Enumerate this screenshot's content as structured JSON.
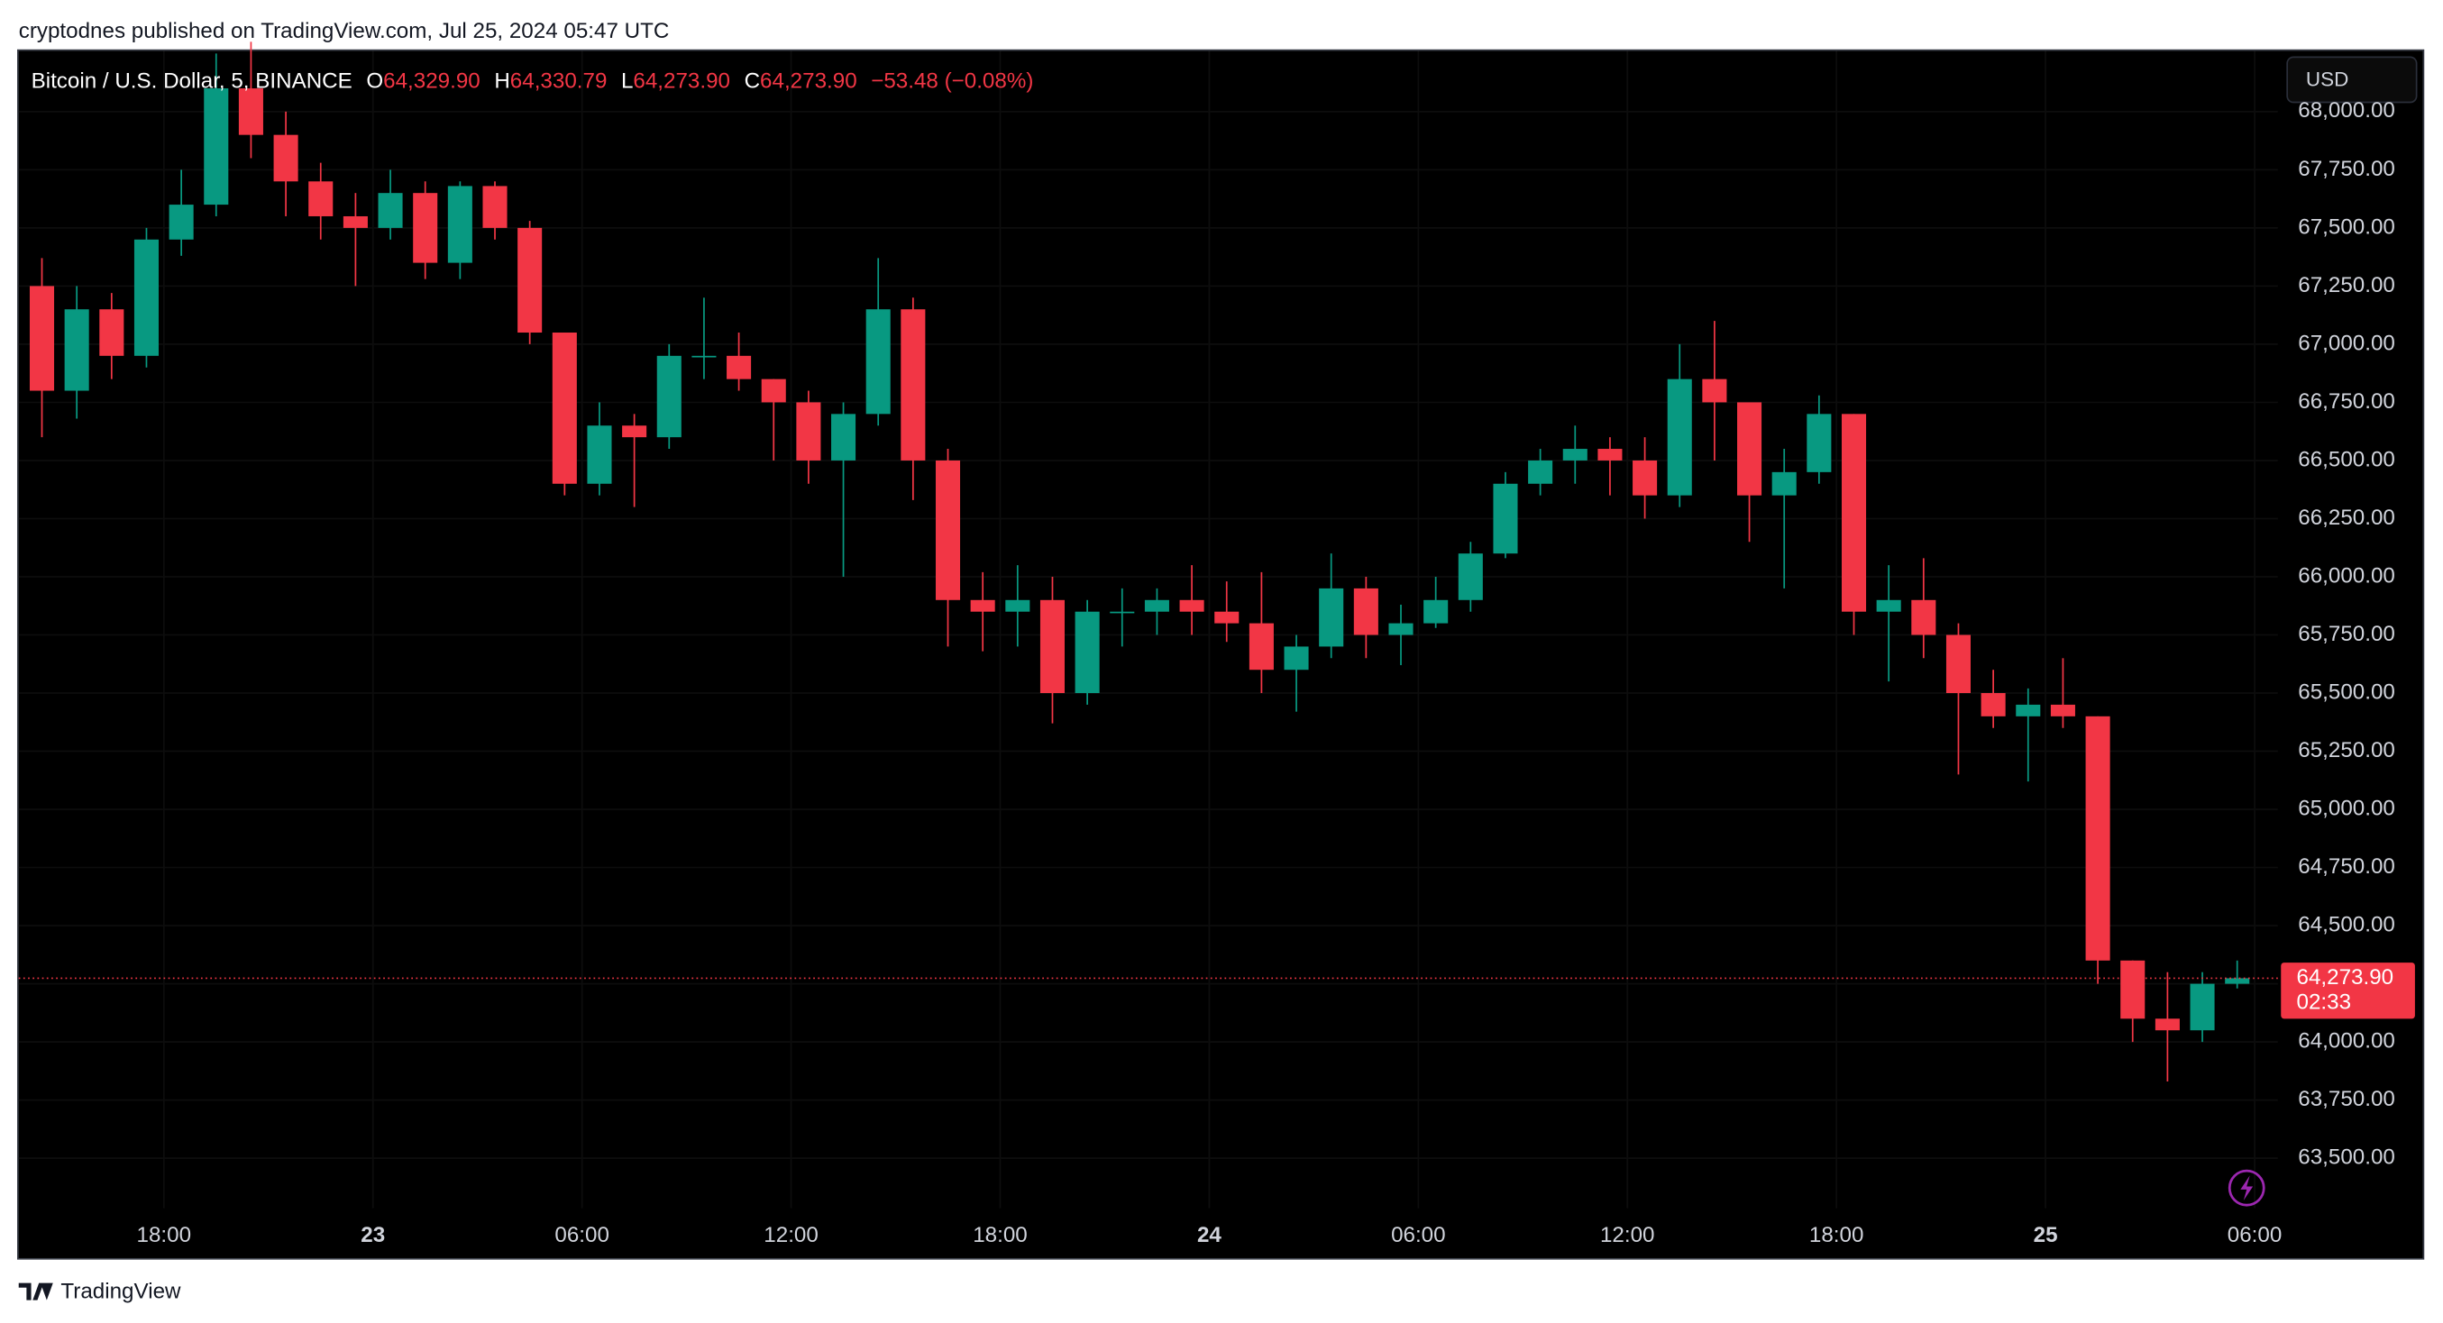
{
  "publish_note": "cryptodnes published on TradingView.com, Jul 25, 2024 05:47 UTC",
  "brand": "TradingView",
  "currency_button": "USD",
  "chart_data": {
    "type": "candlestick",
    "title": "Bitcoin / U.S. Dollar, 5, BINANCE",
    "header_stats": [
      {
        "label": "O",
        "value": "64,329.90"
      },
      {
        "label": "H",
        "value": "64,330.79"
      },
      {
        "label": "L",
        "value": "64,273.90"
      },
      {
        "label": "C",
        "value": "64,273.90"
      }
    ],
    "change": "−53.48 (−0.08%)",
    "x": [
      "2024-07-22T14:00",
      "2024-07-22T15:00",
      "2024-07-22T16:00",
      "2024-07-22T17:00",
      "2024-07-22T18:00",
      "2024-07-22T19:00",
      "2024-07-22T20:00",
      "2024-07-22T21:00",
      "2024-07-22T22:00",
      "2024-07-22T23:00",
      "2024-07-23T00:00",
      "2024-07-23T01:00",
      "2024-07-23T02:00",
      "2024-07-23T03:00",
      "2024-07-23T04:00",
      "2024-07-23T05:00",
      "2024-07-23T06:00",
      "2024-07-23T07:00",
      "2024-07-23T08:00",
      "2024-07-23T09:00",
      "2024-07-23T10:00",
      "2024-07-23T11:00",
      "2024-07-23T12:00",
      "2024-07-23T13:00",
      "2024-07-23T14:00",
      "2024-07-23T15:00",
      "2024-07-23T16:00",
      "2024-07-23T17:00",
      "2024-07-23T18:00",
      "2024-07-23T19:00",
      "2024-07-23T20:00",
      "2024-07-23T21:00",
      "2024-07-23T22:00",
      "2024-07-23T23:00",
      "2024-07-24T00:00",
      "2024-07-24T01:00",
      "2024-07-24T02:00",
      "2024-07-24T03:00",
      "2024-07-24T04:00",
      "2024-07-24T05:00",
      "2024-07-24T06:00",
      "2024-07-24T07:00",
      "2024-07-24T08:00",
      "2024-07-24T09:00",
      "2024-07-24T10:00",
      "2024-07-24T11:00",
      "2024-07-24T12:00",
      "2024-07-24T13:00",
      "2024-07-24T14:00",
      "2024-07-24T15:00",
      "2024-07-24T16:00",
      "2024-07-24T17:00",
      "2024-07-24T18:00",
      "2024-07-24T19:00",
      "2024-07-24T20:00",
      "2024-07-24T21:00",
      "2024-07-24T22:00",
      "2024-07-24T23:00",
      "2024-07-25T00:00",
      "2024-07-25T01:00",
      "2024-07-25T02:00",
      "2024-07-25T03:00",
      "2024-07-25T04:00",
      "2024-07-25T05:00"
    ],
    "open": [
      67250,
      66800,
      67150,
      66950,
      67450,
      67600,
      68100,
      67900,
      67700,
      67550,
      67500,
      67650,
      67350,
      67680,
      67500,
      67050,
      66400,
      66650,
      66600,
      66950,
      66950,
      66850,
      66750,
      66500,
      66700,
      67150,
      66500,
      65900,
      65850,
      65900,
      65500,
      65850,
      65850,
      65900,
      65850,
      65800,
      65600,
      65700,
      65950,
      65750,
      65800,
      65900,
      66100,
      66400,
      66500,
      66550,
      66500,
      66350,
      66850,
      66750,
      66350,
      66450,
      66700,
      65850,
      65900,
      65750,
      65500,
      65400,
      65450,
      65400,
      64350,
      64100,
      64050,
      64250
    ],
    "high": [
      67370,
      67250,
      67220,
      67500,
      67750,
      68250,
      68300,
      68000,
      67780,
      67650,
      67750,
      67700,
      67700,
      67700,
      67530,
      67050,
      66750,
      66700,
      67000,
      67200,
      67050,
      66850,
      66800,
      66750,
      67370,
      67200,
      66550,
      66020,
      66050,
      66000,
      65900,
      65950,
      65950,
      66050,
      65980,
      66020,
      65750,
      66100,
      66000,
      65880,
      66000,
      66150,
      66450,
      66550,
      66650,
      66600,
      66600,
      67000,
      67100,
      66750,
      66550,
      66780,
      66700,
      66050,
      66080,
      65800,
      65600,
      65520,
      65650,
      65400,
      64350,
      64300,
      64300,
      64350
    ],
    "low": [
      66600,
      66680,
      66850,
      66900,
      67380,
      67550,
      67800,
      67550,
      67450,
      67250,
      67450,
      67280,
      67280,
      67450,
      67000,
      66350,
      66350,
      66300,
      66550,
      66850,
      66800,
      66500,
      66400,
      66000,
      66650,
      66330,
      65700,
      65680,
      65700,
      65370,
      65450,
      65700,
      65750,
      65750,
      65720,
      65500,
      65420,
      65650,
      65650,
      65620,
      65780,
      65850,
      66080,
      66350,
      66400,
      66350,
      66250,
      66300,
      66500,
      66150,
      65950,
      66400,
      65750,
      65550,
      65650,
      65150,
      65350,
      65120,
      65350,
      64250,
      64000,
      63830,
      64000,
      64230
    ],
    "close": [
      66800,
      67150,
      66950,
      67450,
      67600,
      68100,
      67900,
      67700,
      67550,
      67500,
      67650,
      67350,
      67680,
      67500,
      67050,
      66400,
      66650,
      66600,
      66950,
      66950,
      66850,
      66750,
      66500,
      66700,
      67150,
      66500,
      65900,
      65850,
      65900,
      65500,
      65850,
      65850,
      65900,
      65850,
      65800,
      65600,
      65700,
      65950,
      65750,
      65800,
      65900,
      66100,
      66400,
      66500,
      66550,
      66500,
      66350,
      66850,
      66750,
      66350,
      66450,
      66700,
      65850,
      65900,
      65750,
      65500,
      65400,
      65450,
      65400,
      64350,
      64100,
      64050,
      64250,
      64273.9
    ],
    "up_color": "#089981",
    "down_color": "#f23645",
    "xlim": [
      "2024-07-22T13:50",
      "2024-07-25T06:40"
    ],
    "xticks": [
      {
        "value": "2024-07-22T18:00",
        "label": "18:00"
      },
      {
        "value": "2024-07-23T00:00",
        "label": "23"
      },
      {
        "value": "2024-07-23T06:00",
        "label": "06:00"
      },
      {
        "value": "2024-07-23T12:00",
        "label": "12:00"
      },
      {
        "value": "2024-07-23T18:00",
        "label": "18:00"
      },
      {
        "value": "2024-07-24T00:00",
        "label": "24"
      },
      {
        "value": "2024-07-24T06:00",
        "label": "06:00"
      },
      {
        "value": "2024-07-24T12:00",
        "label": "12:00"
      },
      {
        "value": "2024-07-24T18:00",
        "label": "18:00"
      },
      {
        "value": "2024-07-25T00:00",
        "label": "25"
      },
      {
        "value": "2024-07-25T06:00",
        "label": "06:00"
      }
    ],
    "ylim": [
      63285,
      68261
    ],
    "yticks": [
      {
        "value": 63500,
        "label": "63,500.00"
      },
      {
        "value": 63750,
        "label": "63,750.00"
      },
      {
        "value": 64000,
        "label": "64,000.00"
      },
      {
        "value": 64250,
        "label": "64,250.00"
      },
      {
        "value": 64500,
        "label": "64,500.00"
      },
      {
        "value": 64750,
        "label": "64,750.00"
      },
      {
        "value": 65000,
        "label": "65,000.00"
      },
      {
        "value": 65250,
        "label": "65,250.00"
      },
      {
        "value": 65500,
        "label": "65,500.00"
      },
      {
        "value": 65750,
        "label": "65,750.00"
      },
      {
        "value": 66000,
        "label": "66,000.00"
      },
      {
        "value": 66250,
        "label": "66,250.00"
      },
      {
        "value": 66500,
        "label": "66,500.00"
      },
      {
        "value": 66750,
        "label": "66,750.00"
      },
      {
        "value": 67000,
        "label": "67,000.00"
      },
      {
        "value": 67250,
        "label": "67,250.00"
      },
      {
        "value": 67500,
        "label": "67,500.00"
      },
      {
        "value": 67750,
        "label": "67,750.00"
      },
      {
        "value": 68000,
        "label": "68,000.00"
      }
    ],
    "last_price": 64273.9,
    "last_price_label": "64,273.90",
    "countdown": "02:33"
  }
}
